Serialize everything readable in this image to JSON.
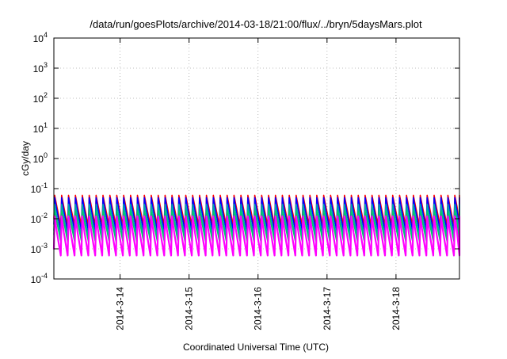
{
  "chart_data": {
    "type": "line",
    "title": "/data/run/goesPlots/archive/2014-03-18/21:00/flux/../bryn/5daysMars.plot",
    "xlabel": "Coordinated Universal Time (UTC)",
    "ylabel": "cGy/day",
    "y_scale": "log",
    "ylim": [
      0.0001,
      10000
    ],
    "y_ticks": [
      {
        "base": "10",
        "exp": "4"
      },
      {
        "base": "10",
        "exp": "3"
      },
      {
        "base": "10",
        "exp": "2"
      },
      {
        "base": "10",
        "exp": "1"
      },
      {
        "base": "10",
        "exp": "0"
      },
      {
        "base": "10",
        "exp": "-1"
      },
      {
        "base": "10",
        "exp": "-2"
      },
      {
        "base": "10",
        "exp": "-3"
      },
      {
        "base": "10",
        "exp": "-4"
      }
    ],
    "x_ticks": [
      "2014-3-14",
      "2014-3-15",
      "2014-3-16",
      "2014-3-17",
      "2014-3-18"
    ],
    "xlim_days": [
      13.04,
      18.92
    ],
    "x_tick_days": [
      14,
      15,
      16,
      17,
      18
    ],
    "grid": true,
    "cycle_period_days": 0.1,
    "series": [
      {
        "color": "#ff0000",
        "peak": 0.06,
        "trough": 0.006
      },
      {
        "color": "#0000ff",
        "peak": 0.05,
        "trough": 0.004
      },
      {
        "color": "#00aaaa",
        "peak": 0.03,
        "trough": 0.0025
      },
      {
        "color": "#00cc66",
        "peak": 0.018,
        "trough": 0.0018
      },
      {
        "color": "#ff00ff",
        "peak": 0.012,
        "trough": 0.0006
      }
    ]
  }
}
